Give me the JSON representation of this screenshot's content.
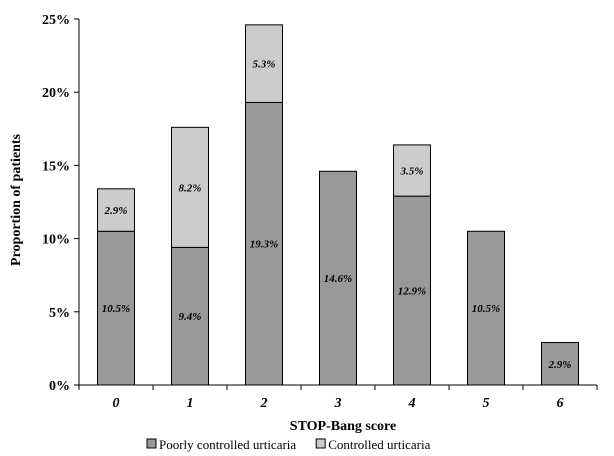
{
  "chart_data": {
    "type": "bar",
    "stacked": true,
    "title": "",
    "xlabel": "STOP-Bang score",
    "ylabel": "Proportion of patients",
    "categories": [
      "0",
      "1",
      "2",
      "3",
      "4",
      "5",
      "6"
    ],
    "y_ticks": [
      "0%",
      "5%",
      "10%",
      "15%",
      "20%",
      "25%"
    ],
    "ylim": [
      0,
      25
    ],
    "grid": false,
    "legend_position": "bottom",
    "series": [
      {
        "name": "Poorly controlled urticaria",
        "color": "#999999",
        "values": [
          10.5,
          9.4,
          19.3,
          14.6,
          12.9,
          10.5,
          2.9
        ],
        "labels": [
          "10.5%",
          "9.4%",
          "19.3%",
          "14.6%",
          "12.9%",
          "10.5%",
          "2.9%"
        ]
      },
      {
        "name": "Controlled urticaria",
        "color": "#cccccc",
        "values": [
          2.9,
          8.2,
          5.3,
          null,
          3.5,
          null,
          null
        ],
        "labels": [
          "2.9%",
          "8.2%",
          "5.3%",
          null,
          "3.5%",
          null,
          null
        ]
      }
    ]
  }
}
